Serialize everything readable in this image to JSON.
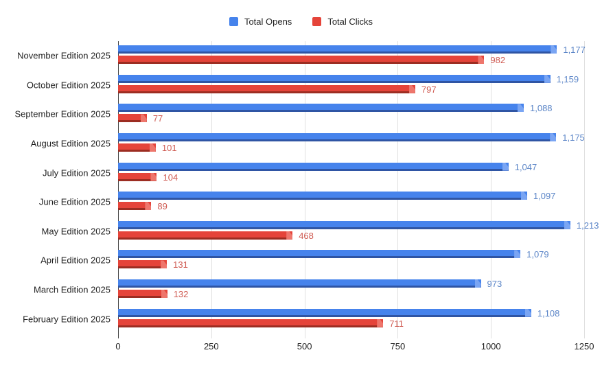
{
  "legend": {
    "items": [
      {
        "label": "Total Opens",
        "color": "#4683ec"
      },
      {
        "label": "Total Clicks",
        "color": "#e5443a"
      }
    ]
  },
  "chart_data": {
    "type": "bar",
    "orientation": "horizontal",
    "title": "",
    "categories": [
      "November Edition 2025",
      "October Edition 2025",
      "September Edition 2025",
      "August Edition 2025",
      "July Edition 2025",
      "June Edition 2025",
      "May Edition 2025",
      "April Edition 2025",
      "March Edition 2025",
      "February Edition 2025"
    ],
    "series": [
      {
        "name": "Total Opens",
        "color": "#4683ec",
        "values": [
          1177,
          1159,
          1088,
          1175,
          1047,
          1097,
          1213,
          1079,
          973,
          1108
        ],
        "labels": [
          "1,177",
          "1,159",
          "1,088",
          "1,175",
          "1,047",
          "1,097",
          "1,213",
          "1,079",
          "973",
          "1,108"
        ]
      },
      {
        "name": "Total Clicks",
        "color": "#e5443a",
        "values": [
          982,
          797,
          77,
          101,
          104,
          89,
          468,
          131,
          132,
          711
        ],
        "labels": [
          "982",
          "797",
          "77",
          "101",
          "104",
          "89",
          "468",
          "131",
          "132",
          "711"
        ]
      }
    ],
    "xlim": [
      0,
      1250
    ],
    "x_ticks": [
      0,
      250,
      500,
      750,
      1000,
      1250
    ],
    "x_tick_labels": [
      "0",
      "250",
      "500",
      "750",
      "1000",
      "1250"
    ],
    "grid": true,
    "legend_position": "top"
  },
  "colors": {
    "blue_main": "#4683ec",
    "blue_dark": "#2f55a4",
    "blue_cap": "#7aa5f3",
    "blue_label": "#5b85c7",
    "red_main": "#e5443a",
    "red_dark": "#9c2d22",
    "red_cap": "#ee766c",
    "red_label": "#cf5a51",
    "gridline": "#e0e0e0",
    "axis_line": "#424242",
    "axis_text": "#1f1f1f",
    "background": "#ffffff"
  }
}
